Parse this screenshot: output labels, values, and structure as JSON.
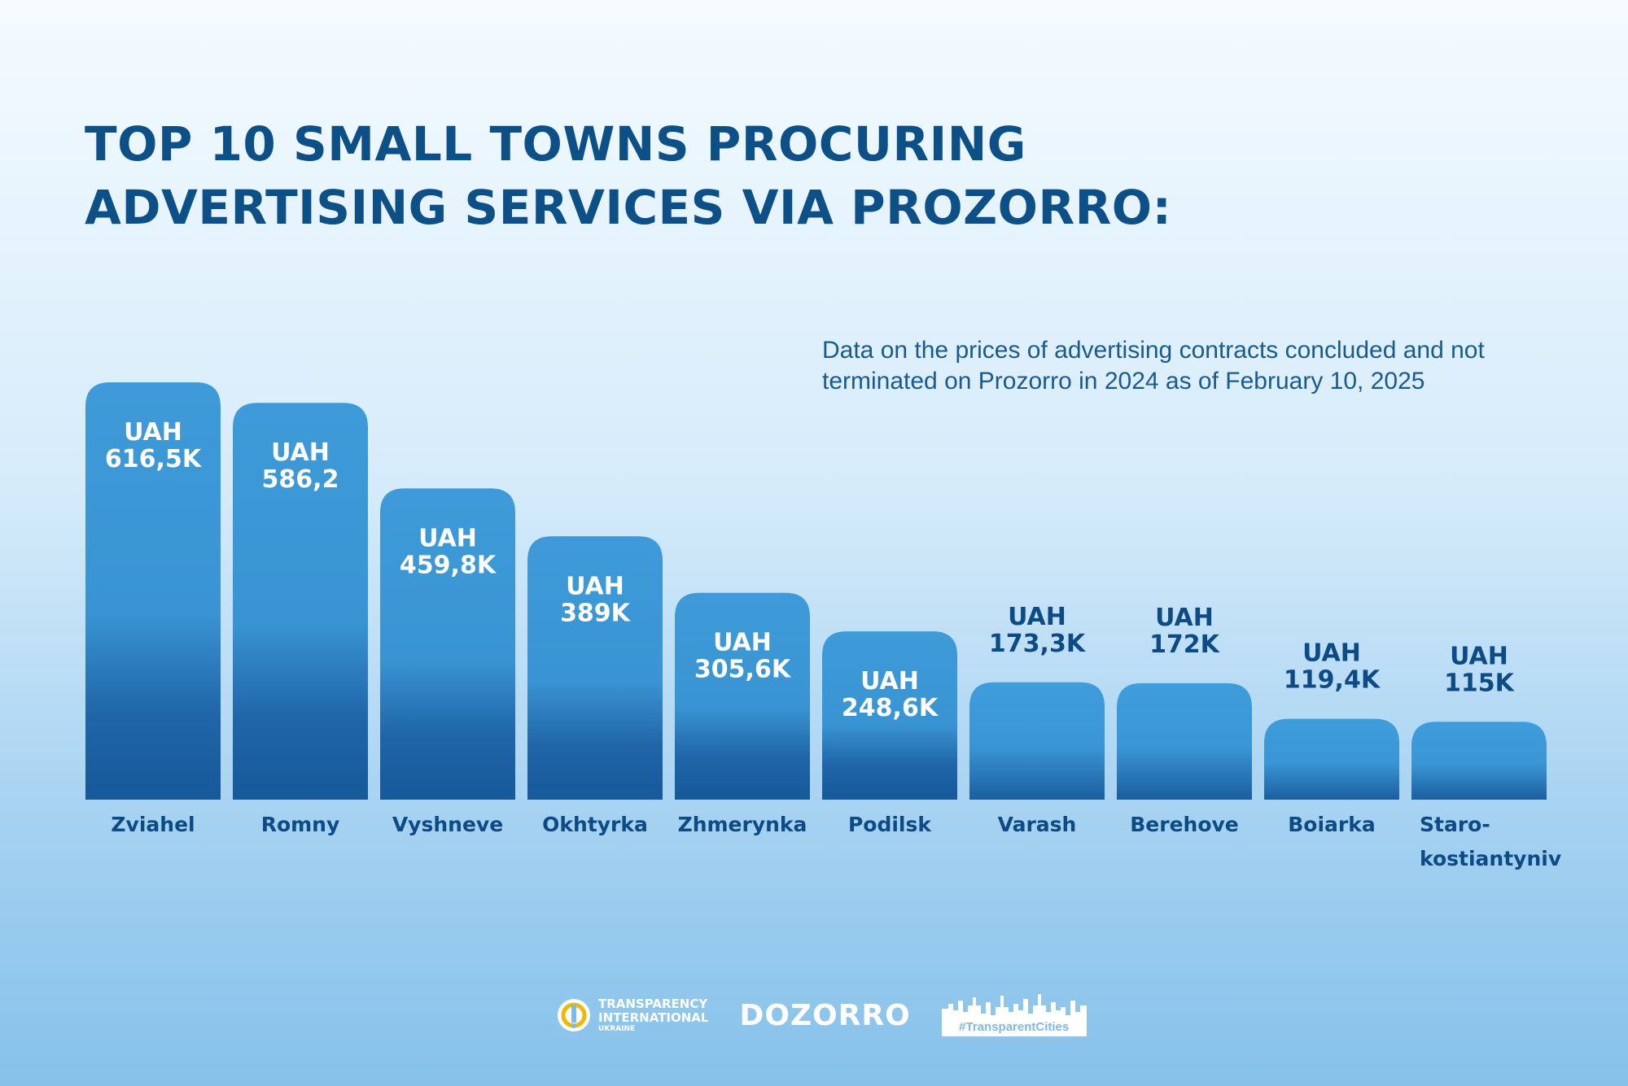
{
  "title": "TOP 10 SMALL TOWNS PROCURING ADVERTISING SERVICES VIA PROZORRO:",
  "note": "Data on the prices of advertising contracts concluded and not terminated on Prozorro in 2024 as of February 10, 2025",
  "colors": {
    "title": "#0d5088",
    "bar_top": "#3e9ad8",
    "bar_bottom": "#1a5c9e",
    "label_inside": "#ffffff",
    "label_outside": "#0d4b86"
  },
  "chart_data": {
    "type": "bar",
    "title": "TOP 10 SMALL TOWNS PROCURING ADVERTISING SERVICES VIA PROZORRO:",
    "categories": [
      "Zviahel",
      "Romny",
      "Vyshneve",
      "Okhtyrka",
      "Zhmerynka",
      "Podilsk",
      "Varash",
      "Berehove",
      "Boiarka",
      "Staro-kostiantyniv"
    ],
    "category_lines": [
      [
        "Zviahel"
      ],
      [
        "Romny"
      ],
      [
        "Vyshneve"
      ],
      [
        "Okhtyrka"
      ],
      [
        "Zhmerynka"
      ],
      [
        "Podilsk"
      ],
      [
        "Varash"
      ],
      [
        "Berehove"
      ],
      [
        "Boiarka"
      ],
      [
        "Staro-",
        "kostiantyniv"
      ]
    ],
    "values": [
      616.5,
      586.2,
      459.8,
      389,
      305.6,
      248.6,
      173.3,
      172,
      119.4,
      115
    ],
    "unit": "UAH thousand",
    "value_labels": [
      [
        "UAH",
        "616,5K"
      ],
      [
        "UAH",
        "586,2"
      ],
      [
        "UAH",
        "459,8K"
      ],
      [
        "UAH",
        "389K"
      ],
      [
        "UAH",
        "305,6K"
      ],
      [
        "UAH",
        "248,6K"
      ],
      [
        "UAH",
        "173,3K"
      ],
      [
        "UAH",
        "172K"
      ],
      [
        "UAH",
        "119,4K"
      ],
      [
        "UAH",
        "115K"
      ]
    ],
    "xlabel": "",
    "ylabel": "",
    "ylim": [
      0,
      616.5
    ],
    "grid": false,
    "legend": "none"
  },
  "footer": {
    "logo_ti_lines": [
      "TRANSPARENCY",
      "INTERNATIONAL",
      "UKRAINE"
    ],
    "logo_dozorro": "DOZORRO",
    "logo_transparent_cities": "#TransparentCities"
  }
}
